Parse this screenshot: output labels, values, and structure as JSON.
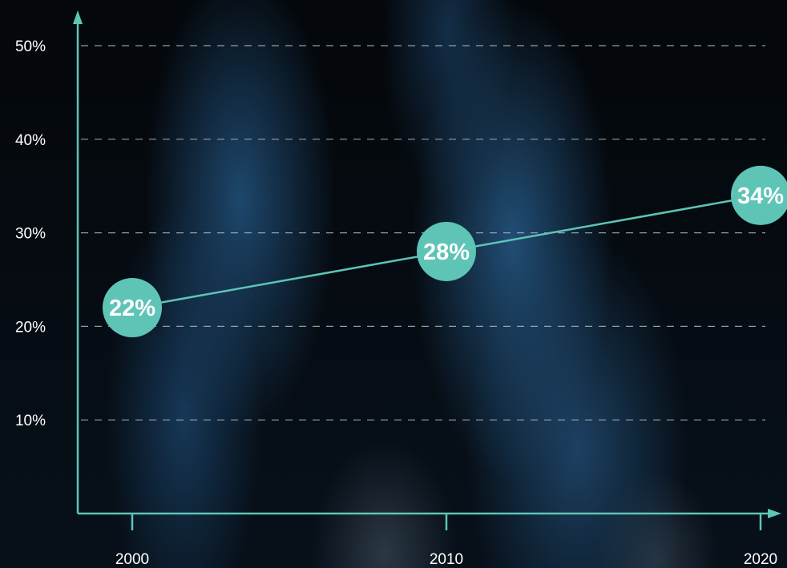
{
  "chart_data": {
    "type": "line",
    "x": [
      "2000",
      "2010",
      "2020"
    ],
    "series": [
      {
        "values": [
          22,
          28,
          34
        ]
      }
    ],
    "data_labels": [
      "22%",
      "28%",
      "34%"
    ],
    "y_ticks": [
      10,
      20,
      30,
      40,
      50
    ],
    "y_tick_labels": [
      "10%",
      "20%",
      "30%",
      "40%",
      "50%"
    ],
    "ylim": [
      0,
      50
    ],
    "grid": "horizontal dashed",
    "title": "",
    "xlabel": "",
    "ylabel": "",
    "colors": {
      "accent": "#5ec4b6",
      "grid": "#a9b4bd",
      "text": "#ffffff"
    }
  }
}
